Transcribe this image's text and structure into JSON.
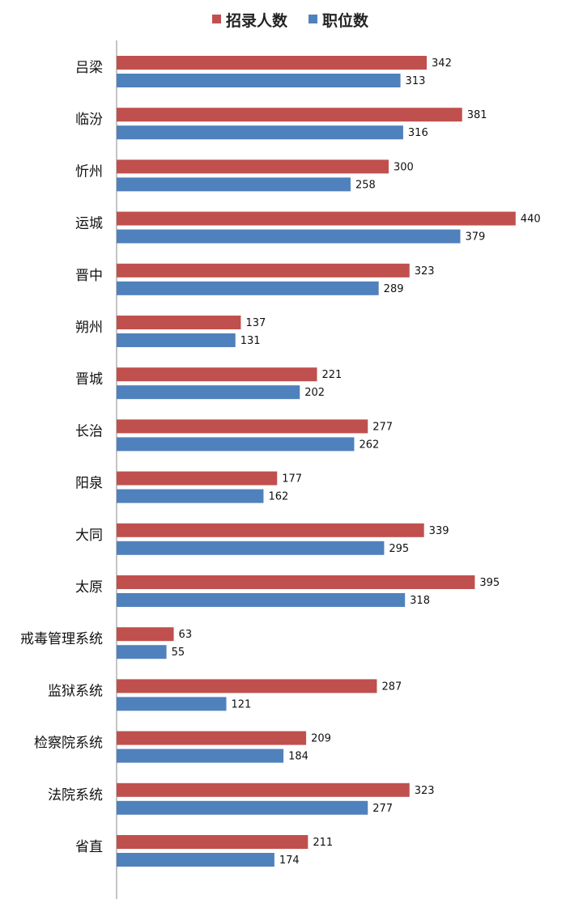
{
  "chart_data": {
    "type": "bar",
    "orientation": "horizontal",
    "categories": [
      "吕梁",
      "临汾",
      "忻州",
      "运城",
      "晋中",
      "朔州",
      "晋城",
      "长治",
      "阳泉",
      "大同",
      "太原",
      "戒毒管理系统",
      "监狱系统",
      "检察院系统",
      "法院系统",
      "省直"
    ],
    "series": [
      {
        "name": "招录人数",
        "color": "#c0504d",
        "values": [
          342,
          381,
          300,
          440,
          323,
          137,
          221,
          277,
          177,
          339,
          395,
          63,
          287,
          209,
          323,
          211
        ]
      },
      {
        "name": "职位数",
        "color": "#4f81bd",
        "values": [
          313,
          316,
          258,
          379,
          289,
          131,
          202,
          262,
          162,
          295,
          318,
          55,
          121,
          184,
          277,
          174
        ]
      }
    ],
    "xlim": [
      0,
      500
    ],
    "legend_position": "top-center",
    "grid": false,
    "data_labels": true
  }
}
